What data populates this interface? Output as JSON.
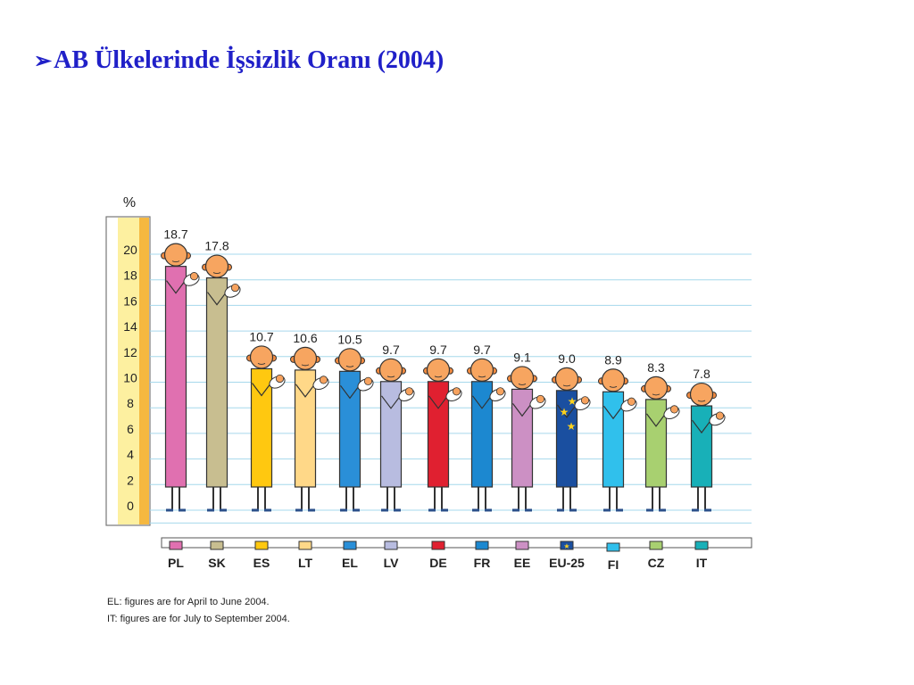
{
  "title": {
    "bullet": "➢",
    "text": "AB Ülkelerinde İşsizlik Oranı (2004)"
  },
  "notes": [
    "EL: figures are for April to June 2004.",
    "IT: figures are for July to September 2004."
  ],
  "chart_data": {
    "type": "bar",
    "title": "AB Ülkelerinde İşsizlik Oranı (2004)",
    "ylabel": "%",
    "xlabel": "",
    "ylim": [
      0,
      20
    ],
    "yticks": [
      20,
      18,
      16,
      14,
      12,
      10,
      8,
      6,
      4,
      2,
      0
    ],
    "grid": true,
    "categories": [
      "PL",
      "SK",
      "ES",
      "LT",
      "EL",
      "LV",
      "DE",
      "FR",
      "EE",
      "EU-25",
      "FI",
      "CZ",
      "IT"
    ],
    "values": [
      18.7,
      17.8,
      10.7,
      10.6,
      10.5,
      9.7,
      9.7,
      9.7,
      9.1,
      9.0,
      8.9,
      8.3,
      7.8
    ],
    "labels": [
      "18.7",
      "17.8",
      "10.7",
      "10.6",
      "10.5",
      "9.7",
      "9.7",
      "9.7",
      "9.1",
      "9.0",
      "8.9",
      "8.3",
      "7.8"
    ],
    "colors": [
      "#e070b0",
      "#c8be90",
      "#ffc810",
      "#ffd888",
      "#2a8fd8",
      "#b8bce0",
      "#e02030",
      "#1c88d0",
      "#cc90c4",
      "#1a4fa0",
      "#30c0ec",
      "#a8d070",
      "#18b0b8"
    ],
    "legend_position": "bottom"
  }
}
